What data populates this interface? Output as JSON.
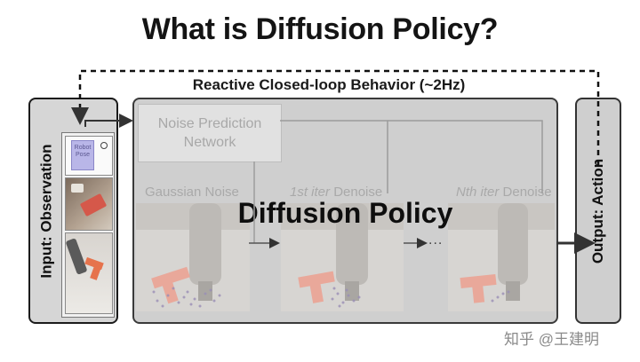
{
  "title": "What is Diffusion Policy?",
  "loop_label": "Reactive Closed-loop Behavior (~2Hz)",
  "input_label": "Input: Observation",
  "output_label": "Output: Action",
  "center_label": "Diffusion Policy",
  "noise_prediction_network": [
    "Noise Prediction",
    "Network"
  ],
  "stages": {
    "gaussian": "Gaussian Noise",
    "first_iter_prefix": "1st iter",
    "nth_iter_prefix": "Nth iter",
    "denoise": "Denoise"
  },
  "ellipsis": "...",
  "obs_sticky_note": [
    "Robot",
    "Pose"
  ],
  "watermark": "知乎 @王建明",
  "colors": {
    "frame_fill": "#d0d0d0",
    "faded_text": "#a8a8a8",
    "action_arrow": "#444444",
    "input_border": "#1b1b1b"
  }
}
